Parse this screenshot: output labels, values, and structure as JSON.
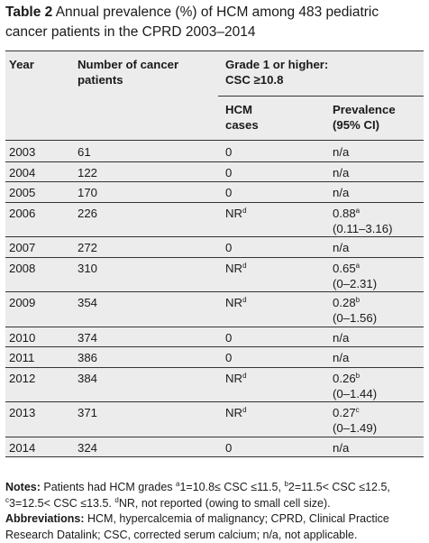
{
  "caption": {
    "label": "Table 2",
    "text": "Annual prevalence (%) of HCM among 483 pediatric cancer patients in the CPRD 2003–2014"
  },
  "header": {
    "year": "Year",
    "patients_line1": "Number of cancer",
    "patients_line2": "patients",
    "grade_line1": "Grade 1 or higher:",
    "grade_line2": "CSC ≥10.8",
    "hcm_line1": "HCM",
    "hcm_line2": "cases",
    "prev_line1": "Prevalence",
    "prev_line2": "(95% CI)"
  },
  "rows": [
    {
      "year": "2003",
      "patients": "61",
      "hcm": "0",
      "hcm_sup": "",
      "prev": "n/a",
      "prev_sup": "",
      "ci": ""
    },
    {
      "year": "2004",
      "patients": "122",
      "hcm": "0",
      "hcm_sup": "",
      "prev": "n/a",
      "prev_sup": "",
      "ci": ""
    },
    {
      "year": "2005",
      "patients": "170",
      "hcm": "0",
      "hcm_sup": "",
      "prev": "n/a",
      "prev_sup": "",
      "ci": ""
    },
    {
      "year": "2006",
      "patients": "226",
      "hcm": "NR",
      "hcm_sup": "d",
      "prev": "0.88",
      "prev_sup": "a",
      "ci": "(0.11–3.16)"
    },
    {
      "year": "2007",
      "patients": "272",
      "hcm": "0",
      "hcm_sup": "",
      "prev": "n/a",
      "prev_sup": "",
      "ci": ""
    },
    {
      "year": "2008",
      "patients": "310",
      "hcm": "NR",
      "hcm_sup": "d",
      "prev": "0.65",
      "prev_sup": "a",
      "ci": "(0–2.31)"
    },
    {
      "year": "2009",
      "patients": "354",
      "hcm": "NR",
      "hcm_sup": "d",
      "prev": "0.28",
      "prev_sup": "b",
      "ci": "(0–1.56)"
    },
    {
      "year": "2010",
      "patients": "374",
      "hcm": "0",
      "hcm_sup": "",
      "prev": "n/a",
      "prev_sup": "",
      "ci": ""
    },
    {
      "year": "2011",
      "patients": "386",
      "hcm": "0",
      "hcm_sup": "",
      "prev": "n/a",
      "prev_sup": "",
      "ci": ""
    },
    {
      "year": "2012",
      "patients": "384",
      "hcm": "NR",
      "hcm_sup": "d",
      "prev": "0.26",
      "prev_sup": "b",
      "ci": "(0–1.44)"
    },
    {
      "year": "2013",
      "patients": "371",
      "hcm": "NR",
      "hcm_sup": "d",
      "prev": "0.27",
      "prev_sup": "c",
      "ci": "(0–1.49)"
    },
    {
      "year": "2014",
      "patients": "324",
      "hcm": "0",
      "hcm_sup": "",
      "prev": "n/a",
      "prev_sup": "",
      "ci": ""
    }
  ],
  "notes": {
    "notes_label": "Notes:",
    "notes_prefix": "Patients had HCM grades",
    "sup_a": "a",
    "grade1": "1=10.8≤ CSC ≤11.5,",
    "sup_b": "b",
    "grade2": "2=11.5< CSC ≤12.5,",
    "sup_c": "c",
    "grade3": "3=12.5< CSC ≤13.5.",
    "sup_d": "d",
    "nr_text": "NR, not reported (owing to small cell size).",
    "abbr_label": "Abbreviations:",
    "abbr_text": "HCM, hypercalcemia of malignancy; CPRD, Clinical Practice Research Datalink; CSC, corrected serum calcium; n/a, not applicable."
  }
}
